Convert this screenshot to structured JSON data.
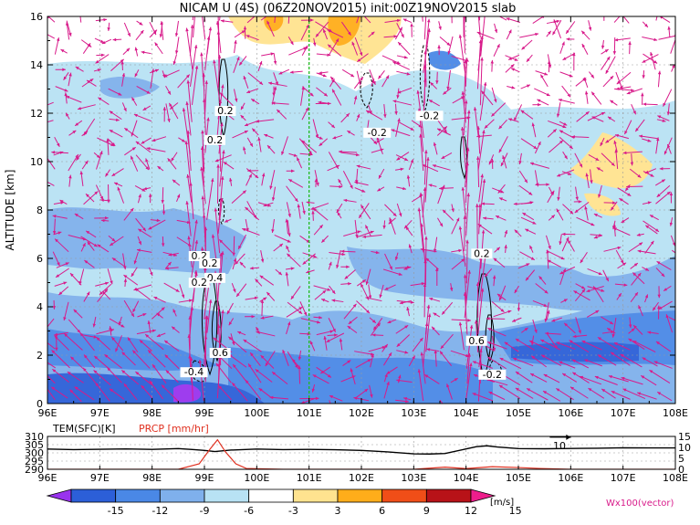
{
  "chart_data": [
    {
      "type": "heatmap",
      "title": "NICAM U (4S) (06Z20NOV2015) init:00Z19NOV2015 slab",
      "ylabel": "ALTITUDE [km]",
      "xlabel": "",
      "x_ticks": [
        "96E",
        "97E",
        "98E",
        "99E",
        "100E",
        "101E",
        "102E",
        "103E",
        "104E",
        "105E",
        "106E",
        "107E",
        "108E"
      ],
      "y_ticks": [
        "0",
        "2",
        "4",
        "6",
        "8",
        "10",
        "12",
        "14",
        "16"
      ],
      "xlim": [
        96,
        108
      ],
      "ylim": [
        0,
        16
      ],
      "dashed_line_x": 101,
      "contour_labels": [
        {
          "text": "0.2",
          "x": 99.4,
          "y": 12.0
        },
        {
          "text": "0.2",
          "x": 99.2,
          "y": 10.8
        },
        {
          "text": "-0.2",
          "x": 102.3,
          "y": 11.1
        },
        {
          "text": "-0.2",
          "x": 103.3,
          "y": 11.8
        },
        {
          "text": "0.2",
          "x": 98.9,
          "y": 6.0
        },
        {
          "text": "0.2",
          "x": 99.1,
          "y": 5.7
        },
        {
          "text": "0.4",
          "x": 99.2,
          "y": 5.1
        },
        {
          "text": "0.2",
          "x": 98.9,
          "y": 4.9
        },
        {
          "text": "0.6",
          "x": 99.3,
          "y": 2.0
        },
        {
          "text": "-0.4",
          "x": 98.8,
          "y": 1.2
        },
        {
          "text": "0.2",
          "x": 104.3,
          "y": 6.1
        },
        {
          "text": "0.6",
          "x": 104.2,
          "y": 2.5
        },
        {
          "text": "-0.2",
          "x": 104.5,
          "y": 1.1
        }
      ],
      "vector_label": "Wx100(vector)"
    },
    {
      "type": "line",
      "xlim": [
        96,
        108
      ],
      "x_ticks": [
        "96E",
        "97E",
        "98E",
        "99E",
        "100E",
        "101E",
        "102E",
        "103E",
        "104E",
        "105E",
        "106E",
        "107E",
        "108E"
      ],
      "left_axis_label": "TEM(SFC)[K]",
      "left_ticks": [
        "290",
        "295",
        "300",
        "305",
        "310"
      ],
      "left_ylim": [
        290,
        310
      ],
      "right_axis_label": "PRCP [mm/hr]",
      "right_ticks": [
        "0",
        "5",
        "10",
        "15"
      ],
      "right_ylim": [
        0,
        15
      ],
      "annotation": "10",
      "series": [
        {
          "name": "TEM(SFC)[K]",
          "color": "#000000",
          "x": [
            96,
            96.5,
            97,
            97.5,
            98,
            98.5,
            98.8,
            99,
            99.2,
            99.5,
            100,
            100.5,
            101,
            101.5,
            102,
            102.5,
            103,
            103.3,
            103.6,
            104,
            104.2,
            104.4,
            104.6,
            105,
            105.5,
            106,
            106.5,
            107,
            107.5,
            108
          ],
          "values": [
            302.3,
            302.0,
            302.2,
            302.4,
            302.1,
            302.6,
            302.0,
            301.5,
            300.8,
            301.7,
            302.3,
            302.0,
            302.1,
            301.9,
            301.5,
            300.6,
            299.4,
            299.3,
            299.6,
            302.4,
            303.8,
            304.3,
            303.6,
            302.6,
            302.5,
            302.7,
            302.8,
            303.1,
            303.0,
            303.0
          ]
        },
        {
          "name": "PRCP [mm/hr]",
          "color": "#e03020",
          "x": [
            96,
            98.5,
            98.9,
            99.1,
            99.25,
            99.4,
            99.6,
            99.8,
            100.5,
            103,
            103.6,
            104,
            104.5,
            105,
            105.4,
            106,
            108
          ],
          "values": [
            0,
            0,
            2.5,
            9,
            13.5,
            8,
            2.5,
            0.4,
            0,
            0,
            1.0,
            0.3,
            1.2,
            0.8,
            0.4,
            0,
            0
          ]
        }
      ]
    }
  ],
  "colorbar": {
    "labels": [
      "-15",
      "-12",
      "-9",
      "-6",
      "-3",
      "3",
      "6",
      "9",
      "12",
      "15"
    ],
    "unit": "[m/s]",
    "colors": [
      "#9933ee",
      "#2c5fd8",
      "#4a88e6",
      "#7fb0ec",
      "#b8e2f4",
      "#ffffff",
      "#ffe38f",
      "#ffad1a",
      "#f04e18",
      "#b81218",
      "#ee1e8c"
    ]
  },
  "colors": {
    "shade_weak_neg": "#b8e2f4",
    "shade_mid_neg": "#7fb0ec",
    "shade_strong_neg": "#4a88e6",
    "shade_very_strong_neg": "#2c5fd8",
    "shade_weak_pos": "#ffe38f",
    "shade_mid_pos": "#ffad1a",
    "vector": "#d81a8a",
    "dashed_line": "#22bb22"
  }
}
